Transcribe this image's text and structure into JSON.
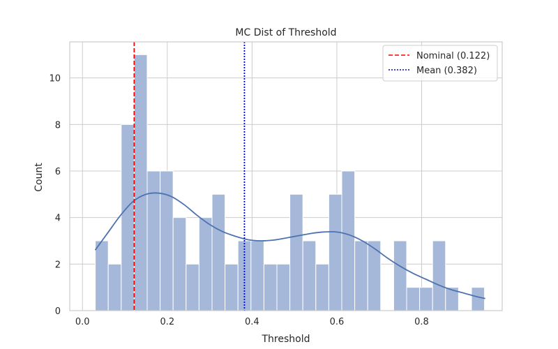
{
  "chart_data": {
    "type": "bar",
    "title": "MC Dist of Threshold",
    "xlabel": "Threshold",
    "ylabel": "Count",
    "xlim": [
      -0.03,
      0.99
    ],
    "ylim": [
      0,
      11.55
    ],
    "xticks": [
      0.0,
      0.2,
      0.4,
      0.6,
      0.8
    ],
    "xtick_labels": [
      "0.0",
      "0.2",
      "0.4",
      "0.6",
      "0.8"
    ],
    "yticks": [
      0,
      2,
      4,
      6,
      8,
      10
    ],
    "ytick_labels": [
      "0",
      "2",
      "4",
      "6",
      "8",
      "10"
    ],
    "grid": true,
    "legend_position": "top-right",
    "bin_edges": [
      0.0302,
      0.0608,
      0.0914,
      0.122,
      0.1526,
      0.1832,
      0.2138,
      0.2444,
      0.275,
      0.3056,
      0.3362,
      0.3668,
      0.3974,
      0.428,
      0.4586,
      0.4892,
      0.5198,
      0.5504,
      0.581,
      0.6116,
      0.6422,
      0.6728,
      0.7034,
      0.734,
      0.7646,
      0.7952,
      0.8258,
      0.8564,
      0.887,
      0.9176,
      0.9482
    ],
    "counts": [
      3,
      2,
      8,
      11,
      6,
      6,
      4,
      2,
      4,
      5,
      2,
      3,
      3,
      2,
      2,
      5,
      3,
      2,
      5,
      6,
      3,
      3,
      0,
      3,
      1,
      1,
      3,
      1,
      0,
      1
    ],
    "kde": {
      "x": [
        0.03,
        0.06,
        0.09,
        0.12,
        0.15,
        0.18,
        0.21,
        0.24,
        0.27,
        0.3,
        0.33,
        0.36,
        0.39,
        0.42,
        0.45,
        0.48,
        0.51,
        0.54,
        0.57,
        0.6,
        0.63,
        0.66,
        0.69,
        0.72,
        0.75,
        0.78,
        0.81,
        0.84,
        0.87,
        0.9,
        0.93,
        0.95
      ],
      "y": [
        2.6,
        3.35,
        4.1,
        4.7,
        5.0,
        5.05,
        4.9,
        4.55,
        4.1,
        3.7,
        3.4,
        3.2,
        3.05,
        3.0,
        3.03,
        3.12,
        3.22,
        3.32,
        3.38,
        3.38,
        3.25,
        3.0,
        2.65,
        2.25,
        1.9,
        1.6,
        1.35,
        1.1,
        0.9,
        0.75,
        0.6,
        0.52
      ]
    },
    "series": [
      {
        "name": "Nominal (0.122)",
        "x": 0.122,
        "color": "#ff0000",
        "style": "dashed"
      },
      {
        "name": "Mean (0.382)",
        "x": 0.382,
        "color": "#0000cc",
        "style": "dotted"
      }
    ],
    "colors": {
      "bar_fill": "#a6b8d9",
      "bar_edge": "#ffffff",
      "kde_line": "#4c72b0",
      "grid": "#cccccc",
      "spine": "#cccccc",
      "text": "#262626"
    }
  }
}
